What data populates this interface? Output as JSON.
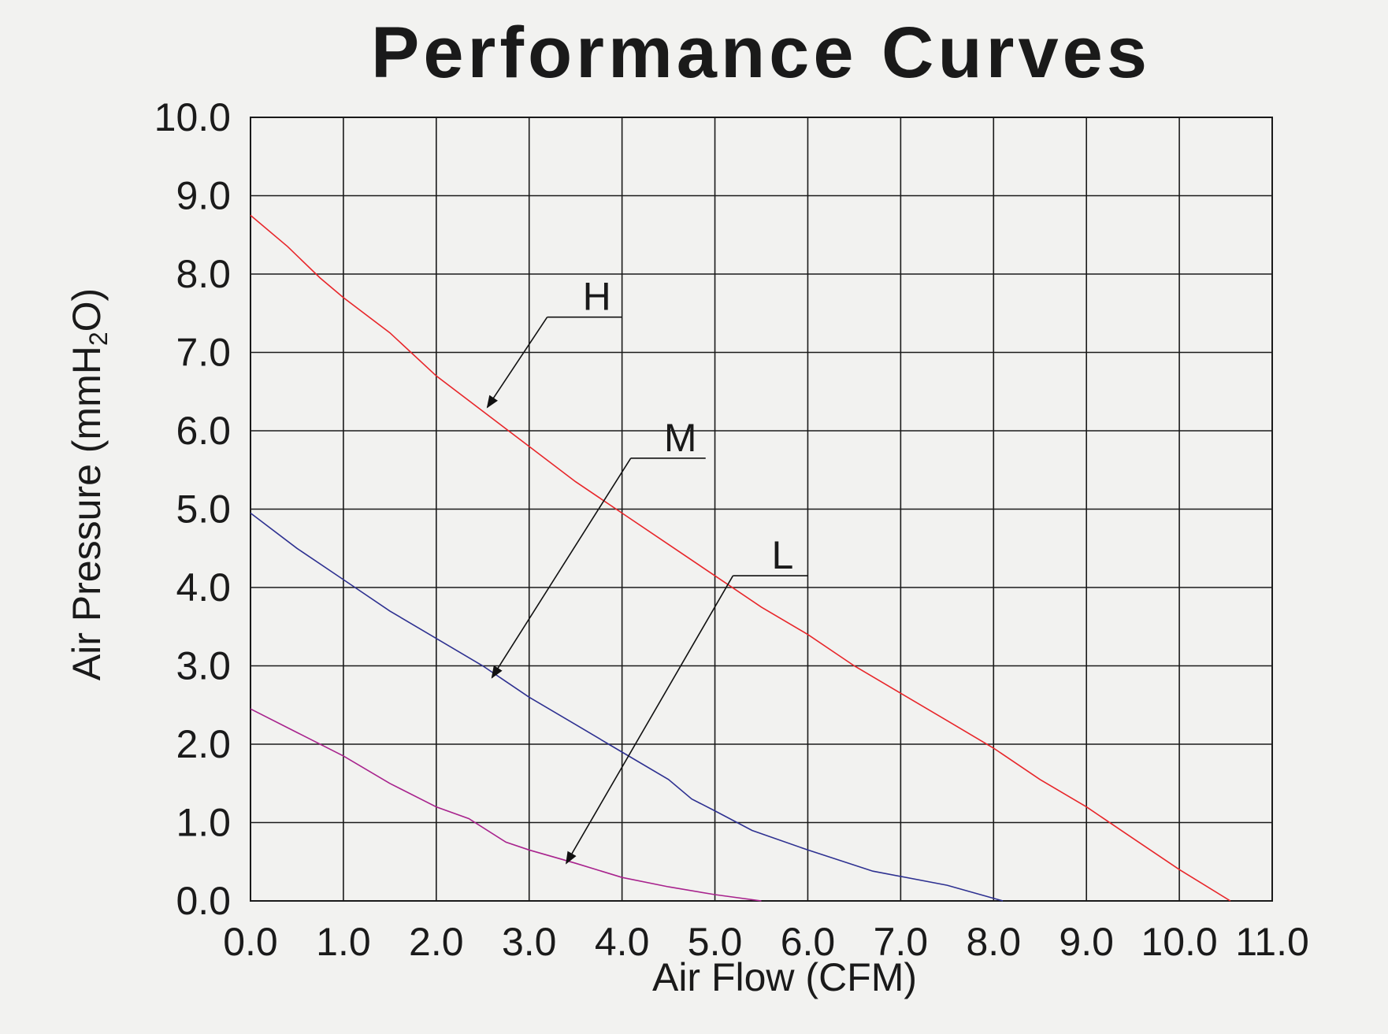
{
  "chart_data": {
    "type": "line",
    "title": "Performance Curves",
    "xlabel": "Air Flow (CFM)",
    "ylabel": {
      "main": "Air Pressure (mmH",
      "subscript": "2",
      "end": "O)"
    },
    "xlim": [
      0,
      11
    ],
    "ylim": [
      0,
      10
    ],
    "x_ticks": [
      "0.0",
      "1.0",
      "2.0",
      "3.0",
      "4.0",
      "5.0",
      "6.0",
      "7.0",
      "8.0",
      "9.0",
      "10.0",
      "11.0"
    ],
    "y_ticks": [
      "0.0",
      "1.0",
      "2.0",
      "3.0",
      "4.0",
      "5.0",
      "6.0",
      "7.0",
      "8.0",
      "9.0",
      "10.0"
    ],
    "grid": true,
    "legend": "none",
    "series": [
      {
        "name": "H",
        "color": "#e8262a",
        "points": [
          [
            0.0,
            8.75
          ],
          [
            0.4,
            8.35
          ],
          [
            0.75,
            7.95
          ],
          [
            1.0,
            7.7
          ],
          [
            1.5,
            7.25
          ],
          [
            2.0,
            6.7
          ],
          [
            2.5,
            6.25
          ],
          [
            3.0,
            5.8
          ],
          [
            3.5,
            5.35
          ],
          [
            4.0,
            4.95
          ],
          [
            4.5,
            4.55
          ],
          [
            5.0,
            4.15
          ],
          [
            5.5,
            3.75
          ],
          [
            6.0,
            3.4
          ],
          [
            6.5,
            3.0
          ],
          [
            7.0,
            2.65
          ],
          [
            7.5,
            2.3
          ],
          [
            8.0,
            1.95
          ],
          [
            8.5,
            1.55
          ],
          [
            9.0,
            1.2
          ],
          [
            9.5,
            0.8
          ],
          [
            10.0,
            0.4
          ],
          [
            10.55,
            0.0
          ]
        ],
        "label": "H",
        "label_anchor": [
          4.0,
          7.45
        ],
        "arrow_target": [
          2.55,
          6.3
        ]
      },
      {
        "name": "M",
        "color": "#2e3191",
        "points": [
          [
            0.0,
            4.95
          ],
          [
            0.5,
            4.5
          ],
          [
            1.0,
            4.1
          ],
          [
            1.5,
            3.7
          ],
          [
            2.0,
            3.35
          ],
          [
            2.5,
            3.0
          ],
          [
            3.0,
            2.6
          ],
          [
            3.5,
            2.25
          ],
          [
            4.0,
            1.9
          ],
          [
            4.5,
            1.55
          ],
          [
            4.75,
            1.3
          ],
          [
            5.0,
            1.15
          ],
          [
            5.4,
            0.9
          ],
          [
            6.0,
            0.65
          ],
          [
            6.7,
            0.38
          ],
          [
            7.5,
            0.2
          ],
          [
            8.1,
            0.0
          ]
        ],
        "label": "M",
        "label_anchor": [
          4.9,
          5.65
        ],
        "arrow_target": [
          2.6,
          2.85
        ]
      },
      {
        "name": "L",
        "color": "#a8238d",
        "points": [
          [
            0.0,
            2.45
          ],
          [
            0.5,
            2.15
          ],
          [
            1.0,
            1.85
          ],
          [
            1.5,
            1.5
          ],
          [
            2.0,
            1.2
          ],
          [
            2.35,
            1.05
          ],
          [
            2.75,
            0.75
          ],
          [
            3.0,
            0.65
          ],
          [
            3.5,
            0.48
          ],
          [
            4.0,
            0.3
          ],
          [
            4.5,
            0.18
          ],
          [
            5.0,
            0.08
          ],
          [
            5.5,
            0.0
          ]
        ],
        "label": "L",
        "label_anchor": [
          6.0,
          4.15
        ],
        "arrow_target": [
          3.4,
          0.48
        ]
      }
    ]
  }
}
